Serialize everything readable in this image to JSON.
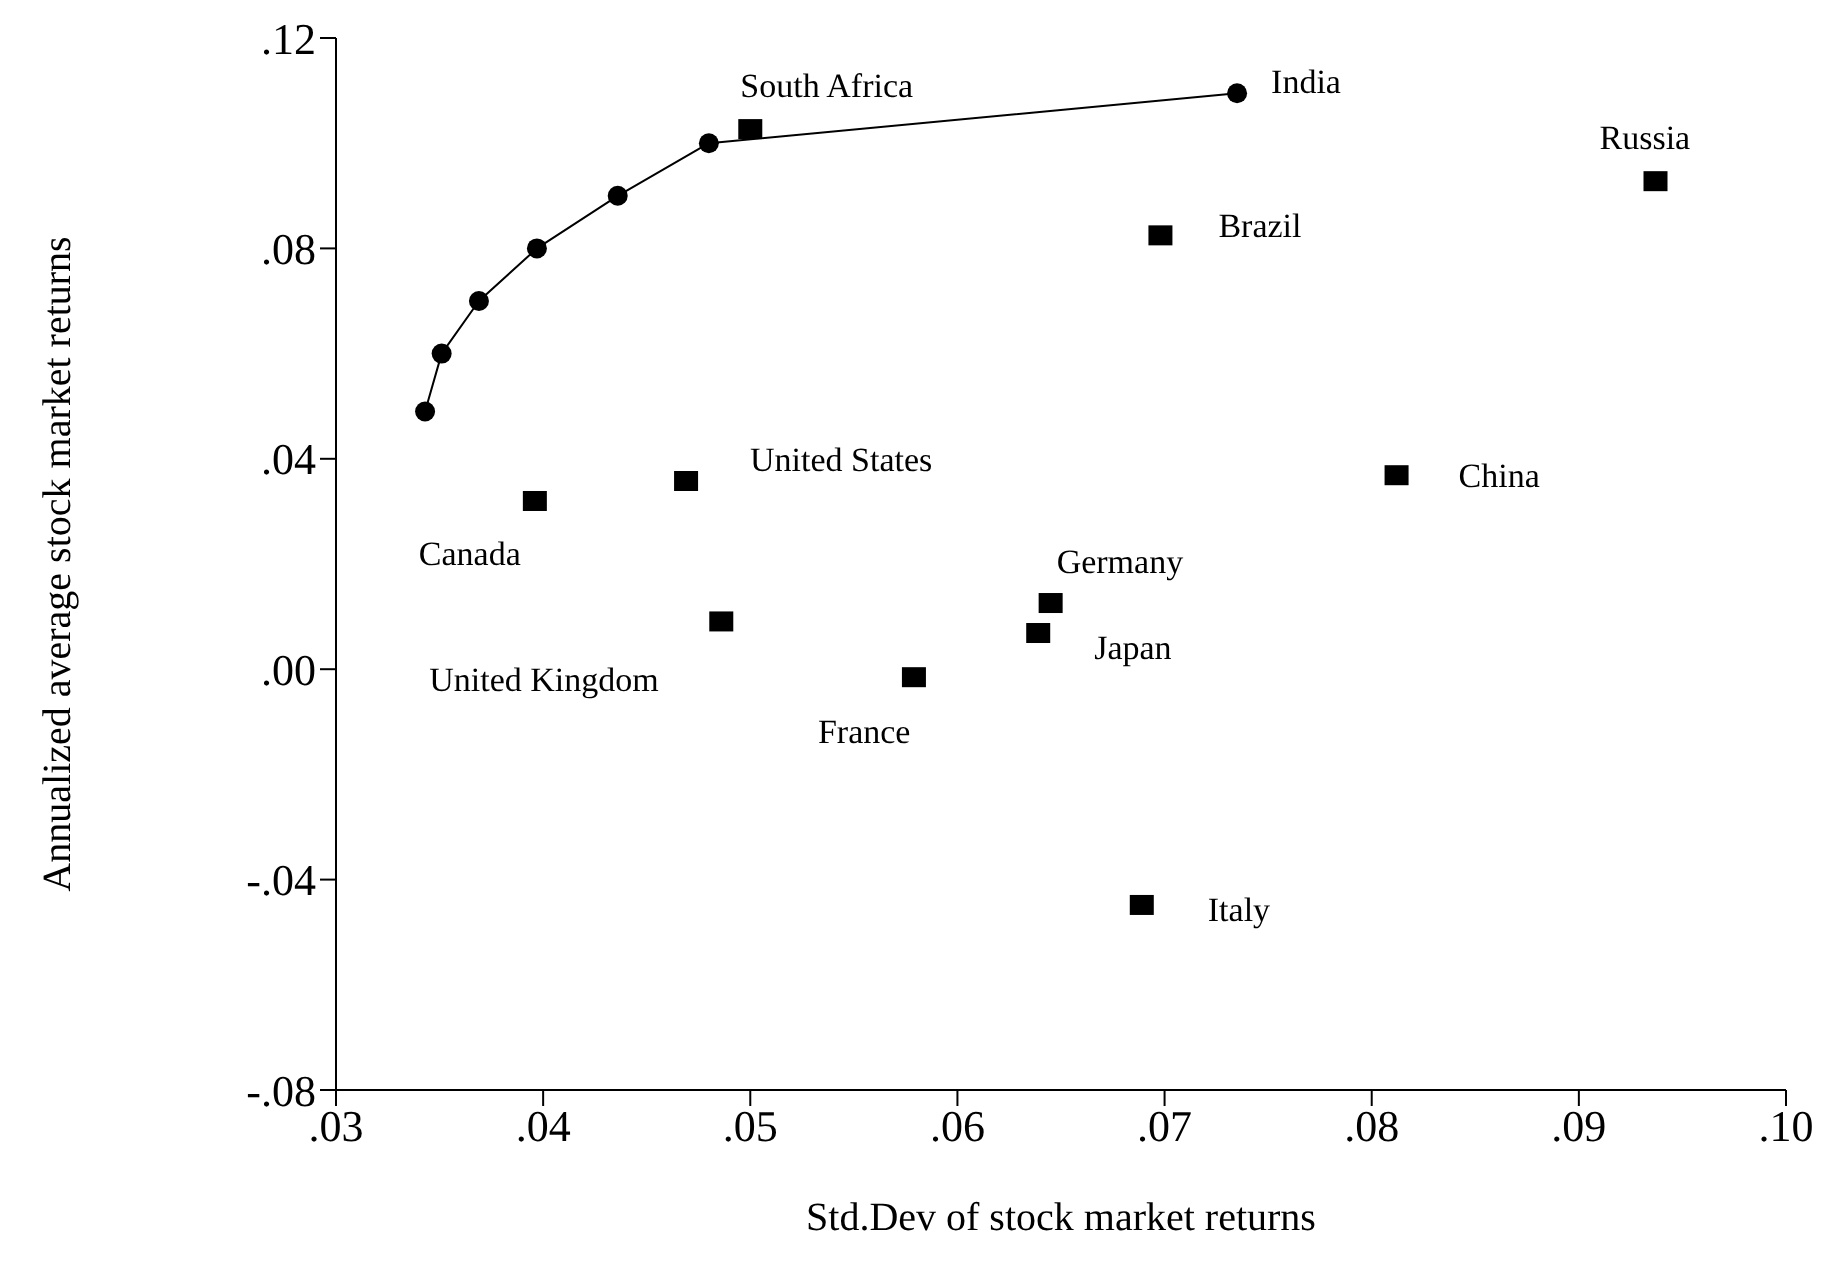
{
  "chart_data": {
    "type": "scatter",
    "xlabel": "Std.Dev of stock market returns",
    "ylabel": "Annualized average stock market returns",
    "xlim": [
      0.03,
      0.1
    ],
    "xticks": [
      {
        "value": 0.03,
        "label": ".03"
      },
      {
        "value": 0.04,
        "label": ".04"
      },
      {
        "value": 0.05,
        "label": ".05"
      },
      {
        "value": 0.06,
        "label": ".06"
      },
      {
        "value": 0.07,
        "label": ".07"
      },
      {
        "value": 0.08,
        "label": ".08"
      },
      {
        "value": 0.09,
        "label": ".09"
      },
      {
        "value": 0.1,
        "label": ".10"
      }
    ],
    "ylim": [
      -0.08,
      0.12
    ],
    "yticks": [
      {
        "value": -0.08,
        "label": "-.08"
      },
      {
        "value": -0.04,
        "label": "-.04"
      },
      {
        "value": 0,
        "label": ".00"
      },
      {
        "value": 0.04,
        "label": ".04"
      },
      {
        "value": 0.08,
        "label": ".08"
      },
      {
        "value": 0.12,
        "label": ".12"
      }
    ],
    "grid": false,
    "series": [
      {
        "type": "line",
        "color": "#000000",
        "marker": "circle",
        "line_style": "solid",
        "x": [
          0.0343,
          0.0351,
          0.0369,
          0.0397,
          0.0436,
          0.048,
          0.0735
        ],
        "values": [
          0.049,
          0.06,
          0.07,
          0.08,
          0.09,
          0.1,
          0.1095
        ]
      },
      {
        "type": "scatter",
        "color": "#000000",
        "marker": "square",
        "x": [
          0.05,
          0.0698,
          0.0937,
          0.0469,
          0.0396,
          0.0812,
          0.0645,
          0.0486,
          0.0639,
          0.0579,
          0.0689
        ],
        "values": [
          0.1023,
          0.0821,
          0.0924,
          0.0354,
          0.0316,
          0.0365,
          0.0122,
          0.0087,
          0.0065,
          -0.0019,
          -0.0452
        ]
      }
    ],
    "annotations": [
      {
        "text": "South Africa",
        "x": 0.05,
        "y": 0.1023
      },
      {
        "text": "India",
        "x": 0.0735,
        "y": 0.1095
      },
      {
        "text": "Russia",
        "x": 0.0937,
        "y": 0.0924
      },
      {
        "text": "Brazil",
        "x": 0.0698,
        "y": 0.0821
      },
      {
        "text": "United States",
        "x": 0.0469,
        "y": 0.0354
      },
      {
        "text": "Canada",
        "x": 0.0396,
        "y": 0.0316
      },
      {
        "text": "China",
        "x": 0.0812,
        "y": 0.0365
      },
      {
        "text": "Germany",
        "x": 0.0645,
        "y": 0.0122
      },
      {
        "text": "United Kingdom",
        "x": 0.0486,
        "y": 0.0087
      },
      {
        "text": "Japan",
        "x": 0.0639,
        "y": 0.0065
      },
      {
        "text": "France",
        "x": 0.0579,
        "y": -0.0019
      },
      {
        "text": "Italy",
        "x": 0.0689,
        "y": -0.0452
      }
    ]
  }
}
